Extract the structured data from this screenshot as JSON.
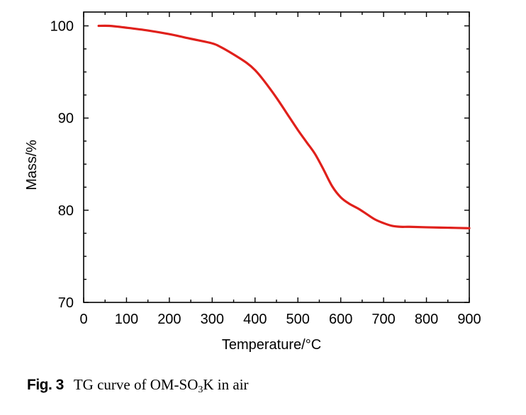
{
  "chart_data": {
    "type": "line",
    "title": "",
    "xlabel": "Temperature/°C",
    "ylabel": "Mass/%",
    "xlim": [
      0,
      900
    ],
    "ylim": [
      70,
      101.5
    ],
    "xticks": [
      0,
      100,
      200,
      300,
      400,
      500,
      600,
      700,
      800,
      900
    ],
    "yticks": [
      70,
      80,
      90,
      100
    ],
    "grid": false,
    "legend": "none",
    "series": [
      {
        "color": "#e0201b",
        "x": [
          35,
          60,
          100,
          150,
          200,
          250,
          300,
          320,
          350,
          380,
          400,
          420,
          450,
          480,
          500,
          520,
          540,
          560,
          580,
          600,
          620,
          640,
          660,
          680,
          700,
          720,
          740,
          760,
          800,
          850,
          900
        ],
        "y": [
          100.0,
          100.0,
          99.8,
          99.5,
          99.1,
          98.6,
          98.1,
          97.7,
          96.9,
          96.0,
          95.2,
          94.1,
          92.2,
          90.1,
          88.7,
          87.4,
          86.1,
          84.4,
          82.6,
          81.4,
          80.7,
          80.2,
          79.6,
          79.0,
          78.6,
          78.3,
          78.2,
          78.2,
          78.15,
          78.1,
          78.05
        ]
      }
    ]
  },
  "caption": {
    "label": "Fig. 3",
    "text_before": "TG curve of OM-SO",
    "subscript": "3",
    "text_after": "K in air"
  }
}
